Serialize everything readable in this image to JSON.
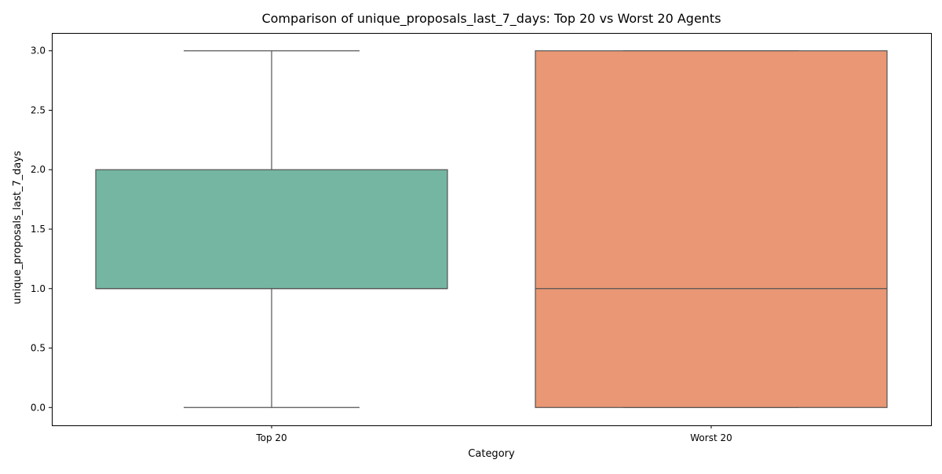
{
  "chart_data": {
    "type": "box",
    "title": "Comparison of unique_proposals_last_7_days: Top 20 vs Worst 20 Agents",
    "xlabel": "Category",
    "ylabel": "unique_proposals_last_7_days",
    "categories": [
      "Top 20",
      "Worst 20"
    ],
    "ylim": [
      -0.15,
      3.15
    ],
    "yticks": [
      0.0,
      0.5,
      1.0,
      1.5,
      2.0,
      2.5,
      3.0
    ],
    "ytick_labels": [
      "0.0",
      "0.5",
      "1.0",
      "1.5",
      "2.0",
      "2.5",
      "3.0"
    ],
    "grid": false,
    "boxes": [
      {
        "category": "Top 20",
        "whisker_low": 0,
        "q1": 1,
        "median": 1,
        "q3": 2,
        "whisker_high": 3,
        "color": "#75b6a2"
      },
      {
        "category": "Worst 20",
        "whisker_low": 0,
        "q1": 0,
        "median": 1,
        "q3": 3,
        "whisker_high": 3,
        "color": "#e99774"
      }
    ]
  },
  "colors": {
    "box_edge": "#545454",
    "axes": "#000000"
  }
}
